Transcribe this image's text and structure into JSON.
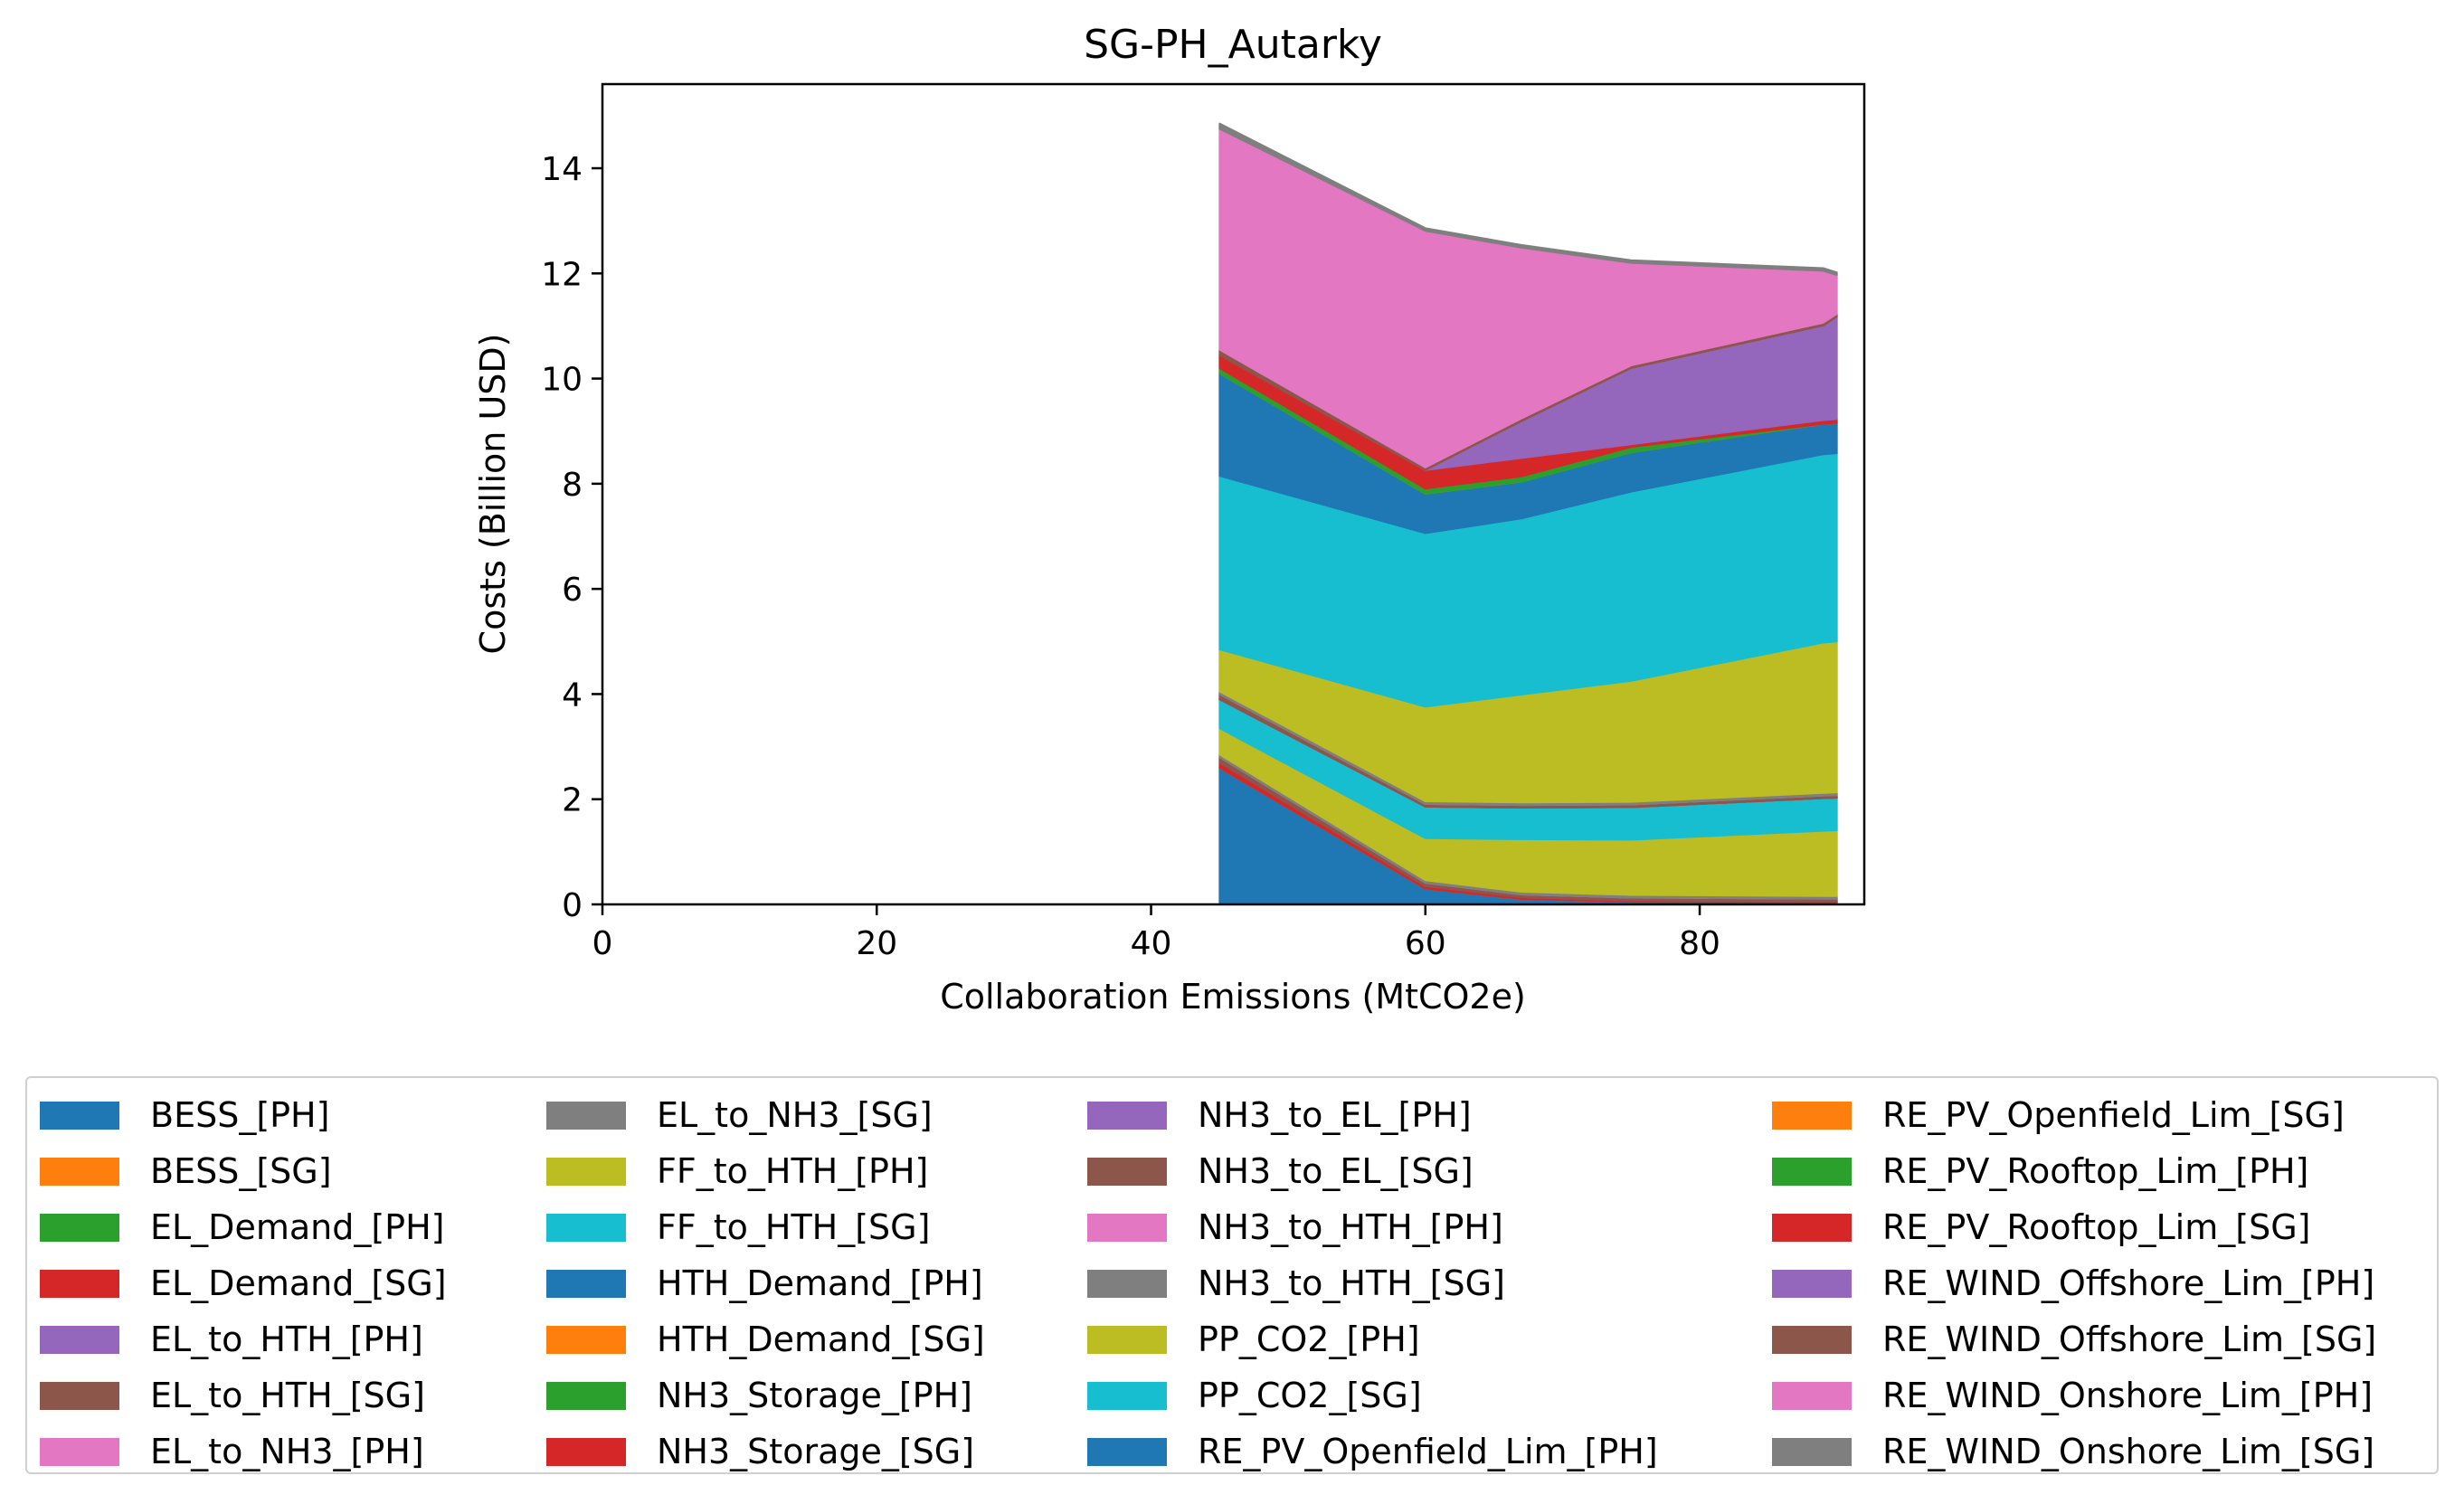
{
  "chart_data": {
    "type": "area",
    "title": "SG-PH_Autarky",
    "xlabel": "Collaboration Emissions (MtCO2e)",
    "ylabel": "Costs (Billion USD)",
    "xlim": [
      0,
      92
    ],
    "ylim": [
      0,
      15.6
    ],
    "xticks": [
      0,
      20,
      40,
      60,
      80
    ],
    "yticks": [
      0,
      2,
      4,
      6,
      8,
      10,
      12,
      14
    ],
    "grid": false,
    "legend_position": "bottom",
    "x": [
      45,
      60,
      67,
      75,
      89,
      90
    ],
    "series": [
      {
        "name": "BESS_[PH]",
        "color": "#1f77b4",
        "values": [
          2.6,
          0.3,
          0.1,
          0.05,
          0.04,
          0.04
        ]
      },
      {
        "name": "BESS_[SG]",
        "color": "#ff7f0e",
        "values": [
          0,
          0,
          0,
          0,
          0,
          0
        ]
      },
      {
        "name": "EL_Demand_[PH]",
        "color": "#2ca02c",
        "values": [
          0,
          0,
          0,
          0,
          0,
          0
        ]
      },
      {
        "name": "EL_Demand_[SG]",
        "color": "#d62728",
        "values": [
          0.1,
          0.05,
          0.04,
          0.03,
          0.02,
          0.02
        ]
      },
      {
        "name": "EL_to_HTH_[PH]",
        "color": "#9467bd",
        "values": [
          0,
          0,
          0,
          0,
          0,
          0
        ]
      },
      {
        "name": "EL_to_HTH_[SG]",
        "color": "#8c564b",
        "values": [
          0.1,
          0.06,
          0.05,
          0.05,
          0.05,
          0.05
        ]
      },
      {
        "name": "EL_to_NH3_[PH]",
        "color": "#e377c2",
        "values": [
          0,
          0,
          0,
          0,
          0,
          0
        ]
      },
      {
        "name": "EL_to_NH3_[SG]",
        "color": "#7f7f7f",
        "values": [
          0.05,
          0.05,
          0.05,
          0.05,
          0.05,
          0.05
        ]
      },
      {
        "name": "FF_to_HTH_[PH]",
        "color": "#bcbd22",
        "values": [
          0.5,
          0.8,
          1.0,
          1.05,
          1.24,
          1.25
        ]
      },
      {
        "name": "FF_to_HTH_[SG]",
        "color": "#17becf",
        "values": [
          0.55,
          0.6,
          0.6,
          0.62,
          0.62,
          0.62
        ]
      },
      {
        "name": "HTH_Demand_[PH]",
        "color": "#1f77b4",
        "values": [
          0,
          0,
          0,
          0,
          0,
          0
        ]
      },
      {
        "name": "HTH_Demand_[SG]",
        "color": "#ff7f0e",
        "values": [
          0,
          0,
          0,
          0,
          0,
          0
        ]
      },
      {
        "name": "NH3_Storage_[PH]",
        "color": "#2ca02c",
        "values": [
          0,
          0,
          0,
          0,
          0,
          0
        ]
      },
      {
        "name": "NH3_Storage_[SG]",
        "color": "#d62728",
        "values": [
          0,
          0,
          0,
          0,
          0,
          0
        ]
      },
      {
        "name": "NH3_to_EL_[PH]",
        "color": "#9467bd",
        "values": [
          0,
          0,
          0,
          0,
          0,
          0
        ]
      },
      {
        "name": "NH3_to_EL_[SG]",
        "color": "#8c564b",
        "values": [
          0.1,
          0.05,
          0.05,
          0.05,
          0.05,
          0.05
        ]
      },
      {
        "name": "NH3_to_HTH_[PH]",
        "color": "#e377c2",
        "values": [
          0,
          0,
          0,
          0,
          0,
          0
        ]
      },
      {
        "name": "NH3_to_HTH_[SG]",
        "color": "#7f7f7f",
        "values": [
          0.05,
          0.05,
          0.05,
          0.05,
          0.05,
          0.05
        ]
      },
      {
        "name": "PP_CO2_[PH]",
        "color": "#bcbd22",
        "values": [
          0.8,
          1.8,
          2.05,
          2.3,
          2.86,
          2.87
        ]
      },
      {
        "name": "PP_CO2_[SG]",
        "color": "#17becf",
        "values": [
          3.3,
          3.3,
          3.35,
          3.6,
          3.58,
          3.58
        ]
      },
      {
        "name": "RE_PV_Openfield_Lim_[PH]",
        "color": "#1f77b4",
        "values": [
          1.95,
          0.75,
          0.7,
          0.75,
          0.58,
          0.58
        ]
      },
      {
        "name": "RE_PV_Openfield_Lim_[SG]",
        "color": "#ff7f0e",
        "values": [
          0,
          0,
          0,
          0,
          0,
          0
        ]
      },
      {
        "name": "RE_PV_Rooftop_Lim_[PH]",
        "color": "#2ca02c",
        "values": [
          0.1,
          0.1,
          0.1,
          0.1,
          0,
          0
        ]
      },
      {
        "name": "RE_PV_Rooftop_Lim_[SG]",
        "color": "#d62728",
        "values": [
          0.25,
          0.35,
          0.35,
          0.05,
          0.07,
          0.07
        ]
      },
      {
        "name": "RE_WIND_Offshore_Lim_[PH]",
        "color": "#9467bd",
        "values": [
          0,
          0,
          0.7,
          1.45,
          1.8,
          1.95
        ]
      },
      {
        "name": "RE_WIND_Offshore_Lim_[SG]",
        "color": "#8c564b",
        "values": [
          0.1,
          0.05,
          0.05,
          0.05,
          0.05,
          0.05
        ]
      },
      {
        "name": "RE_WIND_Onshore_Lim_[PH]",
        "color": "#e377c2",
        "values": [
          4.2,
          4.5,
          3.25,
          1.95,
          0.99,
          0.74
        ]
      },
      {
        "name": "RE_WIND_Onshore_Lim_[SG]",
        "color": "#7f7f7f",
        "values": [
          0.1,
          0.05,
          0.05,
          0.05,
          0.05,
          0.05
        ]
      }
    ]
  }
}
